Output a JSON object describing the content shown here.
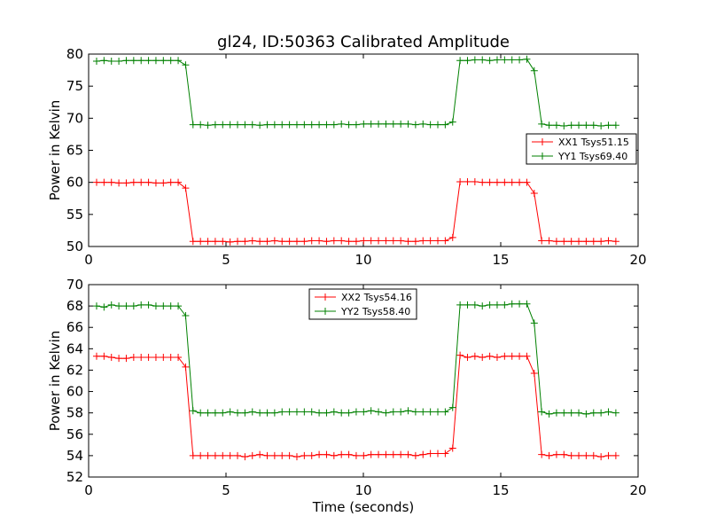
{
  "figure": {
    "title": "gl24, ID:50363 Calibrated Amplitude"
  },
  "chart_data": [
    {
      "type": "line",
      "title": "gl24, ID:50363 Calibrated Amplitude",
      "xlabel": "",
      "ylabel": "Power in Kelvin",
      "xlim": [
        0,
        20
      ],
      "ylim": [
        50,
        80
      ],
      "xticks": [
        "0",
        "5",
        "10",
        "15",
        "20"
      ],
      "yticks": [
        "50",
        "55",
        "60",
        "65",
        "70",
        "75",
        "80"
      ],
      "grid": false,
      "legend": "center-right",
      "series": [
        {
          "name": "XX1 Tsys51.15",
          "color": "#ff0000",
          "x": [
            0.29,
            0.56,
            0.83,
            1.1,
            1.37,
            1.64,
            1.91,
            2.18,
            2.45,
            2.72,
            2.99,
            3.26,
            3.53,
            3.8,
            4.07,
            4.34,
            4.61,
            4.88,
            5.15,
            5.42,
            5.69,
            5.96,
            6.23,
            6.5,
            6.77,
            7.04,
            7.31,
            7.58,
            7.85,
            8.12,
            8.39,
            8.66,
            8.93,
            9.2,
            9.47,
            9.74,
            10.01,
            10.28,
            10.55,
            10.82,
            11.09,
            11.36,
            11.63,
            11.9,
            12.17,
            12.44,
            12.71,
            12.98,
            13.25,
            13.52,
            13.79,
            14.06,
            14.33,
            14.6,
            14.87,
            15.14,
            15.41,
            15.68,
            15.95,
            16.22,
            16.49,
            16.76,
            17.03,
            17.3,
            17.57,
            17.84,
            18.11,
            18.38,
            18.65,
            18.92,
            19.19
          ],
          "y": [
            60.0,
            60.0,
            60.0,
            59.9,
            59.9,
            60.0,
            60.0,
            60.0,
            59.9,
            59.9,
            60.0,
            60.0,
            59.1,
            50.8,
            50.8,
            50.8,
            50.8,
            50.8,
            50.7,
            50.8,
            50.8,
            50.9,
            50.8,
            50.8,
            50.9,
            50.8,
            50.8,
            50.8,
            50.8,
            50.9,
            50.9,
            50.8,
            50.9,
            50.9,
            50.8,
            50.8,
            50.9,
            50.9,
            50.9,
            50.9,
            50.9,
            50.9,
            50.8,
            50.8,
            50.9,
            50.9,
            50.9,
            50.9,
            51.4,
            60.1,
            60.1,
            60.1,
            60.0,
            60.0,
            60.0,
            60.0,
            60.0,
            60.0,
            60.0,
            58.3,
            50.9,
            50.9,
            50.8,
            50.8,
            50.8,
            50.8,
            50.8,
            50.8,
            50.8,
            50.9,
            50.8
          ]
        },
        {
          "name": "YY1 Tsys69.40",
          "color": "#008000",
          "x": [
            0.29,
            0.56,
            0.83,
            1.1,
            1.37,
            1.64,
            1.91,
            2.18,
            2.45,
            2.72,
            2.99,
            3.26,
            3.53,
            3.8,
            4.07,
            4.34,
            4.61,
            4.88,
            5.15,
            5.42,
            5.69,
            5.96,
            6.23,
            6.5,
            6.77,
            7.04,
            7.31,
            7.58,
            7.85,
            8.12,
            8.39,
            8.66,
            8.93,
            9.2,
            9.47,
            9.74,
            10.01,
            10.28,
            10.55,
            10.82,
            11.09,
            11.36,
            11.63,
            11.9,
            12.17,
            12.44,
            12.71,
            12.98,
            13.25,
            13.52,
            13.79,
            14.06,
            14.33,
            14.6,
            14.87,
            15.14,
            15.41,
            15.68,
            15.95,
            16.22,
            16.49,
            16.76,
            17.03,
            17.3,
            17.57,
            17.84,
            18.11,
            18.38,
            18.65,
            18.92,
            19.19
          ],
          "y": [
            78.9,
            79.0,
            78.9,
            78.9,
            79.0,
            79.0,
            79.0,
            79.0,
            79.0,
            79.0,
            79.0,
            79.0,
            78.3,
            69.0,
            69.0,
            68.9,
            69.0,
            69.0,
            69.0,
            69.0,
            69.0,
            69.0,
            68.9,
            69.0,
            69.0,
            69.0,
            69.0,
            69.0,
            69.0,
            69.0,
            69.0,
            69.0,
            69.0,
            69.1,
            69.0,
            69.0,
            69.1,
            69.1,
            69.1,
            69.1,
            69.1,
            69.1,
            69.1,
            69.0,
            69.1,
            69.0,
            69.0,
            69.0,
            69.4,
            79.0,
            79.0,
            79.1,
            79.1,
            79.0,
            79.1,
            79.1,
            79.1,
            79.1,
            79.2,
            77.4,
            69.1,
            68.9,
            68.9,
            68.8,
            68.9,
            68.9,
            68.9,
            68.9,
            68.8,
            68.9,
            68.9
          ]
        }
      ]
    },
    {
      "type": "line",
      "title": "",
      "xlabel": "Time (seconds)",
      "ylabel": "Power in Kelvin",
      "xlim": [
        0,
        20
      ],
      "ylim": [
        52,
        70
      ],
      "xticks": [
        "0",
        "5",
        "10",
        "15",
        "20"
      ],
      "yticks": [
        "52",
        "54",
        "56",
        "58",
        "60",
        "62",
        "64",
        "66",
        "68",
        "70"
      ],
      "grid": false,
      "legend": "top-center",
      "series": [
        {
          "name": "XX2 Tsys54.16",
          "color": "#ff0000",
          "x": [
            0.29,
            0.56,
            0.83,
            1.1,
            1.37,
            1.64,
            1.91,
            2.18,
            2.45,
            2.72,
            2.99,
            3.26,
            3.53,
            3.8,
            4.07,
            4.34,
            4.61,
            4.88,
            5.15,
            5.42,
            5.69,
            5.96,
            6.23,
            6.5,
            6.77,
            7.04,
            7.31,
            7.58,
            7.85,
            8.12,
            8.39,
            8.66,
            8.93,
            9.2,
            9.47,
            9.74,
            10.01,
            10.28,
            10.55,
            10.82,
            11.09,
            11.36,
            11.63,
            11.9,
            12.17,
            12.44,
            12.71,
            12.98,
            13.25,
            13.52,
            13.79,
            14.06,
            14.33,
            14.6,
            14.87,
            15.14,
            15.41,
            15.68,
            15.95,
            16.22,
            16.49,
            16.76,
            17.03,
            17.3,
            17.57,
            17.84,
            18.11,
            18.38,
            18.65,
            18.92,
            19.19
          ],
          "y": [
            63.3,
            63.3,
            63.2,
            63.1,
            63.1,
            63.2,
            63.2,
            63.2,
            63.2,
            63.2,
            63.2,
            63.2,
            62.3,
            54.0,
            54.0,
            54.0,
            54.0,
            54.0,
            54.0,
            54.0,
            53.9,
            54.0,
            54.1,
            54.0,
            54.0,
            54.0,
            54.0,
            53.9,
            54.0,
            54.0,
            54.1,
            54.1,
            54.0,
            54.1,
            54.1,
            54.0,
            54.0,
            54.1,
            54.1,
            54.1,
            54.1,
            54.1,
            54.1,
            54.0,
            54.1,
            54.2,
            54.2,
            54.2,
            54.7,
            63.4,
            63.2,
            63.3,
            63.2,
            63.3,
            63.2,
            63.3,
            63.3,
            63.3,
            63.3,
            61.7,
            54.1,
            54.0,
            54.1,
            54.1,
            54.0,
            54.0,
            54.0,
            54.0,
            53.9,
            54.0,
            54.0
          ]
        },
        {
          "name": "YY2 Tsys58.40",
          "color": "#008000",
          "x": [
            0.29,
            0.56,
            0.83,
            1.1,
            1.37,
            1.64,
            1.91,
            2.18,
            2.45,
            2.72,
            2.99,
            3.26,
            3.53,
            3.8,
            4.07,
            4.34,
            4.61,
            4.88,
            5.15,
            5.42,
            5.69,
            5.96,
            6.23,
            6.5,
            6.77,
            7.04,
            7.31,
            7.58,
            7.85,
            8.12,
            8.39,
            8.66,
            8.93,
            9.2,
            9.47,
            9.74,
            10.01,
            10.28,
            10.55,
            10.82,
            11.09,
            11.36,
            11.63,
            11.9,
            12.17,
            12.44,
            12.71,
            12.98,
            13.25,
            13.52,
            13.79,
            14.06,
            14.33,
            14.6,
            14.87,
            15.14,
            15.41,
            15.68,
            15.95,
            16.22,
            16.49,
            16.76,
            17.03,
            17.3,
            17.57,
            17.84,
            18.11,
            18.38,
            18.65,
            18.92,
            19.19
          ],
          "y": [
            68.0,
            67.9,
            68.1,
            68.0,
            68.0,
            68.0,
            68.1,
            68.1,
            68.0,
            68.0,
            68.0,
            68.0,
            67.1,
            58.2,
            58.0,
            58.0,
            58.0,
            58.0,
            58.1,
            58.0,
            58.0,
            58.1,
            58.0,
            58.0,
            58.0,
            58.1,
            58.1,
            58.1,
            58.1,
            58.1,
            58.0,
            58.0,
            58.1,
            58.0,
            58.0,
            58.1,
            58.1,
            58.2,
            58.1,
            58.0,
            58.1,
            58.1,
            58.2,
            58.1,
            58.1,
            58.1,
            58.1,
            58.1,
            58.5,
            68.1,
            68.1,
            68.1,
            68.0,
            68.1,
            68.1,
            68.1,
            68.2,
            68.2,
            68.2,
            66.4,
            58.1,
            57.9,
            58.0,
            58.0,
            58.0,
            58.0,
            57.9,
            58.0,
            58.0,
            58.1,
            58.0
          ]
        }
      ]
    }
  ]
}
